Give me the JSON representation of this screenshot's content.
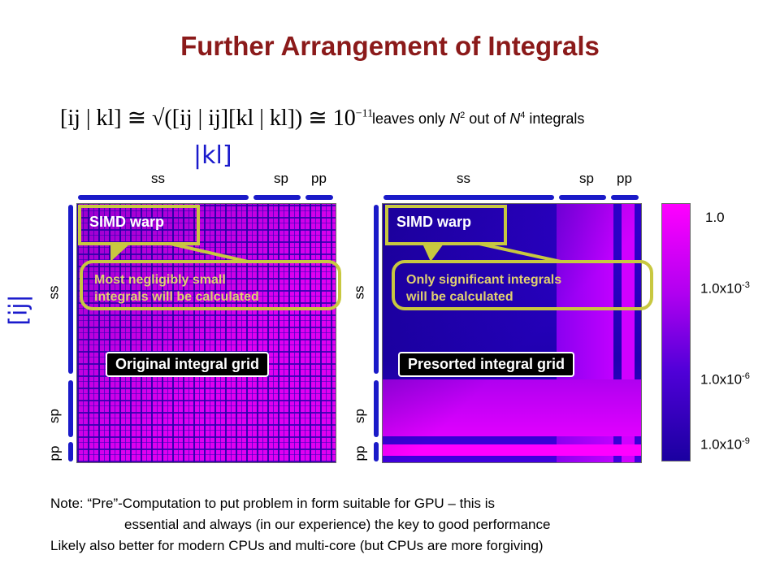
{
  "title": "Further Arrangement of Integrals",
  "formula": {
    "left": "[ij | kl] ≅ √([ij | ij][kl | kl]) ≅ 10",
    "exponent": "−11"
  },
  "leaves": {
    "prefix": "leaves only ",
    "n": "N",
    "sup1": "2",
    "middle": " out of ",
    "n2": "N",
    "sup2": "4",
    "suffix": " integrals"
  },
  "axis_symbols": {
    "kl": "|kl]",
    "ij": "[ij|"
  },
  "top_labels": {
    "ss": "ss",
    "sp": "sp",
    "pp": "pp"
  },
  "side_labels": {
    "ss": "ss",
    "sp": "sp",
    "pp": "pp"
  },
  "left_panel": {
    "warp": "SIMD warp",
    "callout_line1": "Most negligibly small",
    "callout_line2": "integrals will be calculated",
    "grid_label": "Original integral grid"
  },
  "right_panel": {
    "warp": "SIMD warp",
    "callout_line1": "Only significant integrals",
    "callout_line2": "will be calculated",
    "grid_label": "Presorted integral grid"
  },
  "scale": {
    "l1": "1.0",
    "l2_base": "1.0x10",
    "l2_exp": "-3",
    "l3_base": "1.0x10",
    "l3_exp": "-6",
    "l4_base": "1.0x10",
    "l4_exp": "-9"
  },
  "notes": {
    "line1": "Note: “Pre”-Computation to put problem in form suitable for GPU – this is",
    "line2": "essential and always (in our experience) the key to good performance",
    "line3": "Likely also better for modern CPUs and multi-core (but CPUs are more forgiving)"
  },
  "colors": {
    "title": "#8b1a1a",
    "accent": "#c8c840",
    "grid_dark": "#2a00c8",
    "grid_bright": "#ff00ff"
  }
}
